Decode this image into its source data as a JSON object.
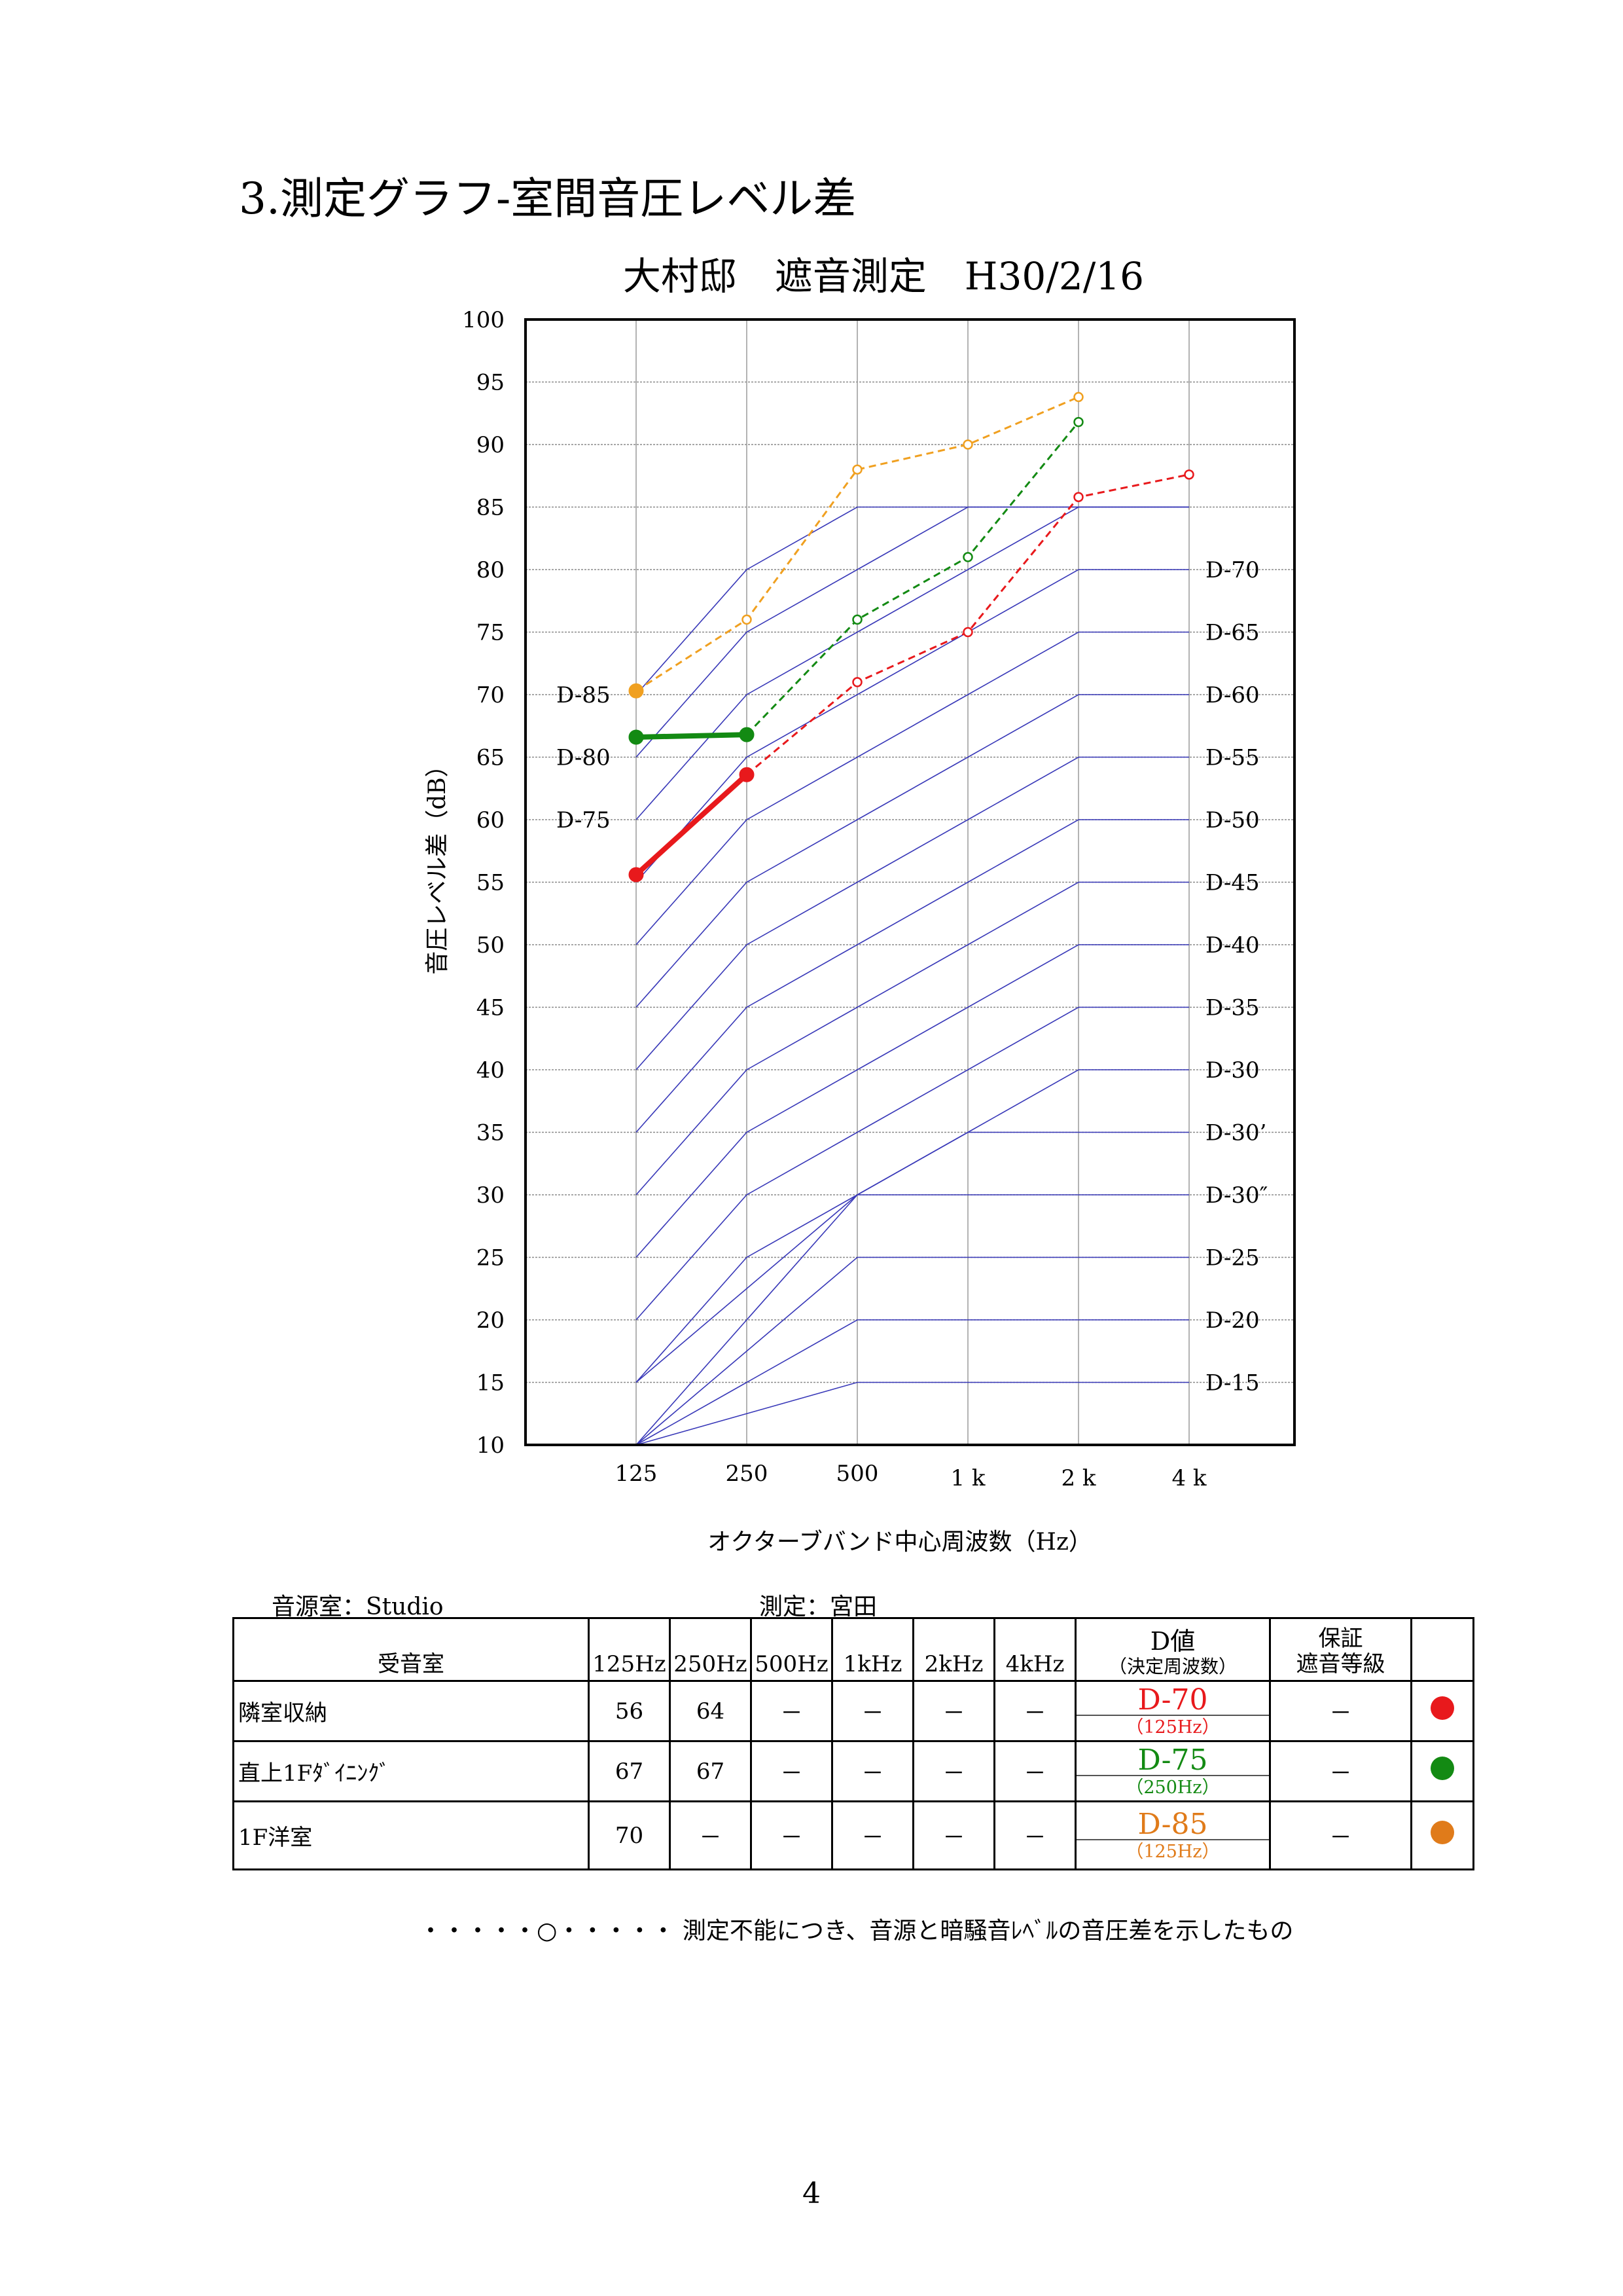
{
  "heading": "3.測定グラフ-室間音圧レベル差",
  "chart_data": {
    "type": "line",
    "title": "大村邸　遮音測定　H30/2/16",
    "xlabel": "オクターブバンド中心周波数（Hz）",
    "ylabel": "音圧レベル差（dB）",
    "categories": [
      "125",
      "250",
      "500",
      "1 k",
      "2 k",
      "4 k"
    ],
    "ylim": [
      10,
      100
    ],
    "yticks": [
      10,
      15,
      20,
      25,
      30,
      35,
      40,
      45,
      50,
      55,
      60,
      65,
      70,
      75,
      80,
      85,
      90,
      95,
      100
    ],
    "grid": true,
    "reference_curves": [
      {
        "name": "D-85",
        "values": [
          70,
          80,
          85,
          85,
          85,
          85
        ]
      },
      {
        "name": "D-80",
        "values": [
          65,
          75,
          80,
          85,
          85,
          85
        ]
      },
      {
        "name": "D-75",
        "values": [
          60,
          70,
          75,
          80,
          85,
          85
        ]
      },
      {
        "name": "D-70",
        "values": [
          55,
          65,
          70,
          75,
          80,
          80
        ]
      },
      {
        "name": "D-65",
        "values": [
          50,
          60,
          65,
          70,
          75,
          75
        ]
      },
      {
        "name": "D-60",
        "values": [
          45,
          55,
          60,
          65,
          70,
          70
        ]
      },
      {
        "name": "D-55",
        "values": [
          40,
          50,
          55,
          60,
          65,
          65
        ]
      },
      {
        "name": "D-50",
        "values": [
          35,
          45,
          50,
          55,
          60,
          60
        ]
      },
      {
        "name": "D-45",
        "values": [
          30,
          40,
          45,
          50,
          55,
          55
        ]
      },
      {
        "name": "D-40",
        "values": [
          25,
          35,
          40,
          45,
          50,
          50
        ]
      },
      {
        "name": "D-35",
        "values": [
          20,
          30,
          35,
          40,
          45,
          45
        ]
      },
      {
        "name": "D-30",
        "values": [
          15,
          25,
          30,
          35,
          40,
          40
        ]
      },
      {
        "name": "D-30’",
        "values": [
          15,
          22.5,
          30,
          35,
          35,
          35
        ]
      },
      {
        "name": "D-30″",
        "values": [
          10,
          20,
          30,
          30,
          30,
          30
        ]
      },
      {
        "name": "D-25",
        "values": [
          10,
          17.5,
          25,
          25,
          25,
          25
        ]
      },
      {
        "name": "D-20",
        "values": [
          10,
          15,
          20,
          20,
          20,
          20
        ]
      },
      {
        "name": "D-15",
        "values": [
          10,
          12.5,
          15,
          15,
          15,
          15
        ]
      }
    ],
    "left_curve_labels": [
      "D-85",
      "D-80",
      "D-75"
    ],
    "series": [
      {
        "color": "#e8191c",
        "measured": [
          55.6,
          63.6
        ],
        "unmeasurable": [
          63.6,
          71.0,
          75.0,
          85.8,
          87.6
        ]
      },
      {
        "color": "#138a13",
        "measured": [
          66.6,
          66.8
        ],
        "unmeasurable": [
          66.8,
          76.0,
          81.0,
          91.8
        ]
      },
      {
        "color": "#f0a020",
        "measured": [
          70.3
        ],
        "unmeasurable": [
          70.3,
          76.0,
          88.0,
          90.0,
          93.8
        ]
      }
    ]
  },
  "meta": {
    "source_room": "音源室：Studio",
    "measurer": "測定：宮田"
  },
  "table": {
    "headers": {
      "room": "受音室",
      "freqs": [
        "125Hz",
        "250Hz",
        "500Hz",
        "1kHz",
        "2kHz",
        "4kHz"
      ],
      "dvalue_line1": "D値",
      "dvalue_line2": "（決定周波数）",
      "grade_line1": "保証",
      "grade_line2": "遮音等級"
    },
    "rows": [
      {
        "room": "隣室収納",
        "values": [
          "56",
          "64",
          "－",
          "－",
          "－",
          "－"
        ],
        "dvalue": "D-70",
        "dfreq": "（125Hz）",
        "grade": "－",
        "color": "#e8191c"
      },
      {
        "room": "直上1Fﾀﾞｲﾆﾝｸﾞ",
        "values": [
          "67",
          "67",
          "－",
          "－",
          "－",
          "－"
        ],
        "dvalue": "D-75",
        "dfreq": "（250Hz）",
        "grade": "－",
        "color": "#138a13"
      },
      {
        "room": "1F洋室",
        "values": [
          "70",
          "－",
          "－",
          "－",
          "－",
          "－"
        ],
        "dvalue": "D-85",
        "dfreq": "（125Hz）",
        "grade": "－",
        "color": "#e07b1a"
      }
    ]
  },
  "footnote": "・・・・・○・・・・・ 測定不能につき、音源と暗騒音ﾚﾍﾞﾙの音圧差を示したもの",
  "page_number": "4"
}
